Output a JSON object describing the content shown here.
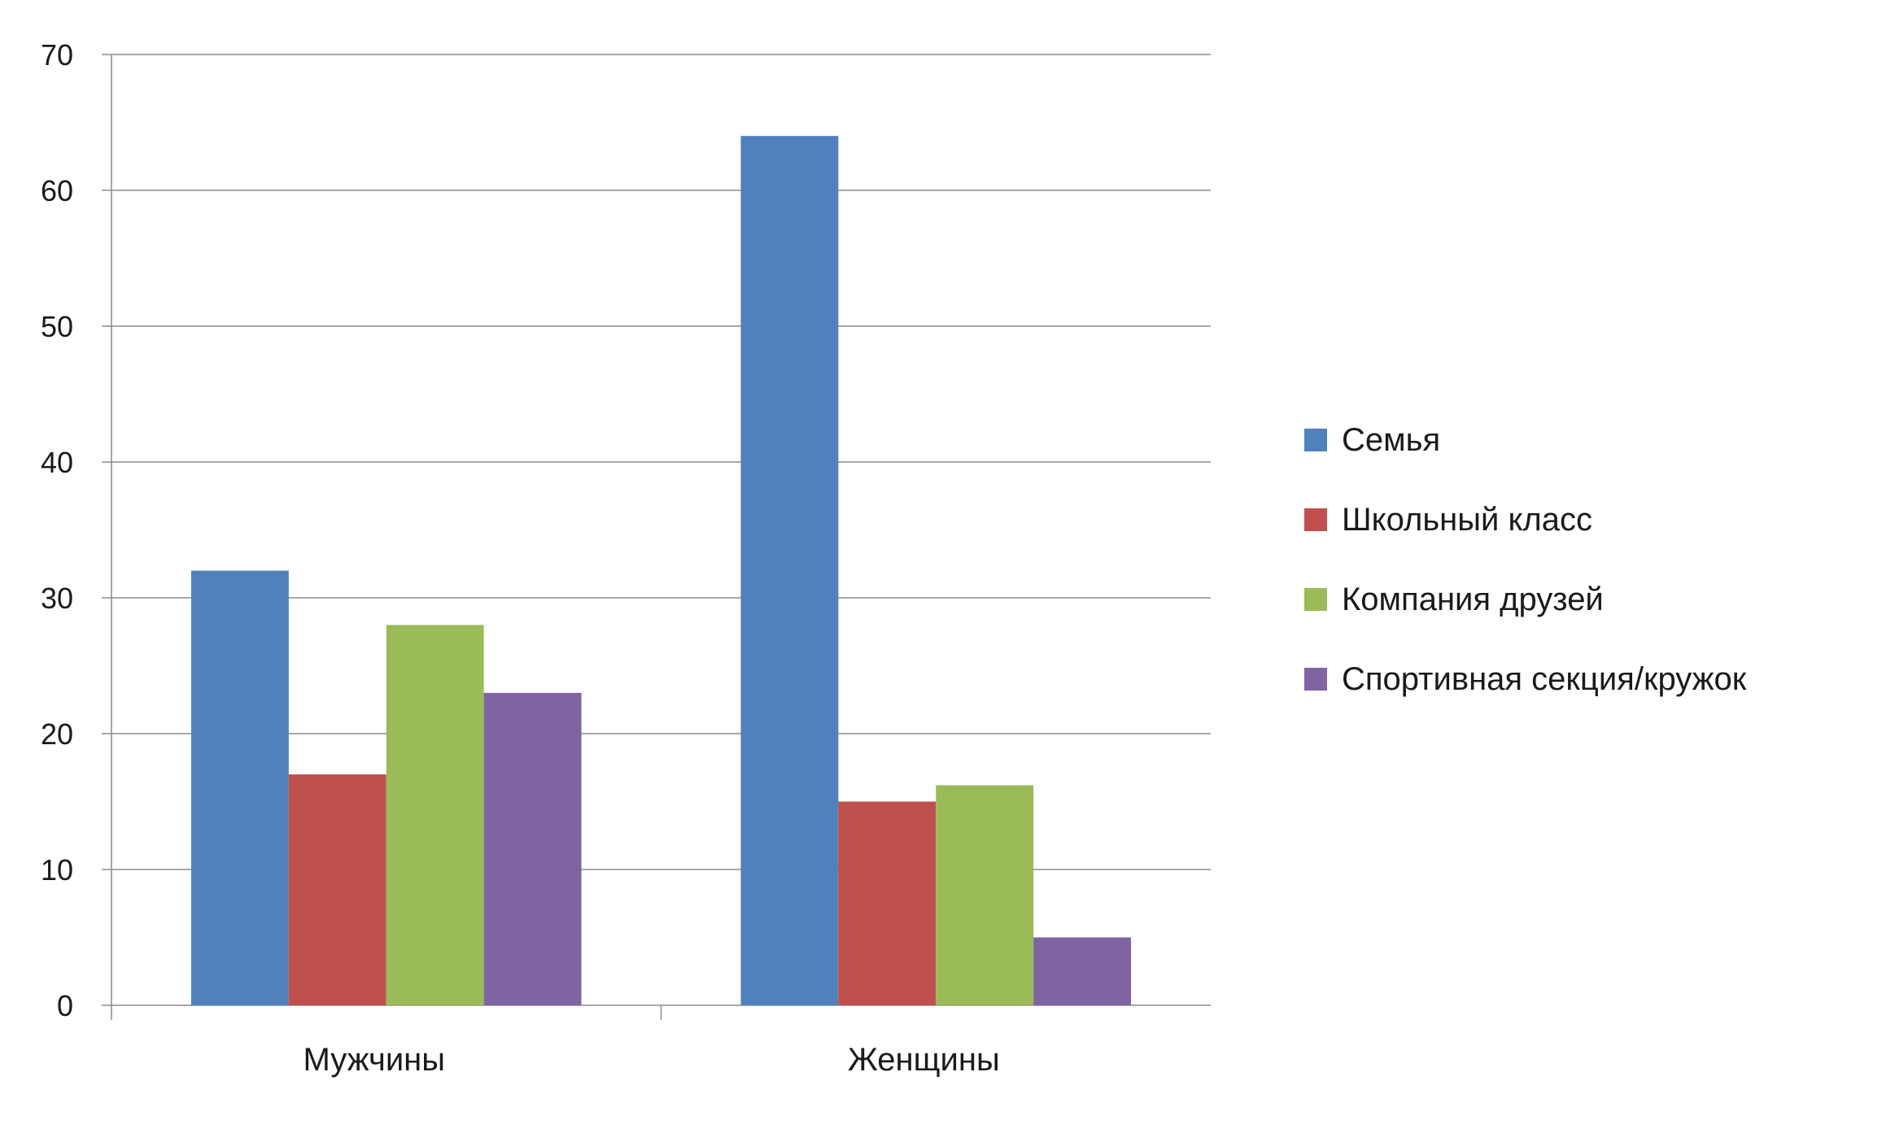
{
  "chart_data": {
    "type": "bar",
    "categories": [
      "Мужчины",
      "Женщины"
    ],
    "series": [
      {
        "name": "Семья",
        "color": "#4f81bd",
        "values": [
          32,
          64
        ]
      },
      {
        "name": "Школьный класс",
        "color": "#c0504d",
        "values": [
          17,
          15
        ]
      },
      {
        "name": "Компания друзей",
        "color": "#9bbb59",
        "values": [
          28,
          16.2
        ]
      },
      {
        "name": "Спортивная секция/кружок",
        "color": "#8064a2",
        "values": [
          23,
          5
        ]
      }
    ],
    "y_ticks": [
      0,
      10,
      20,
      30,
      40,
      50,
      60,
      70
    ],
    "ylim": [
      0,
      70
    ],
    "grid": true,
    "legend_position": "right",
    "title": "",
    "xlabel": "",
    "ylabel": ""
  }
}
